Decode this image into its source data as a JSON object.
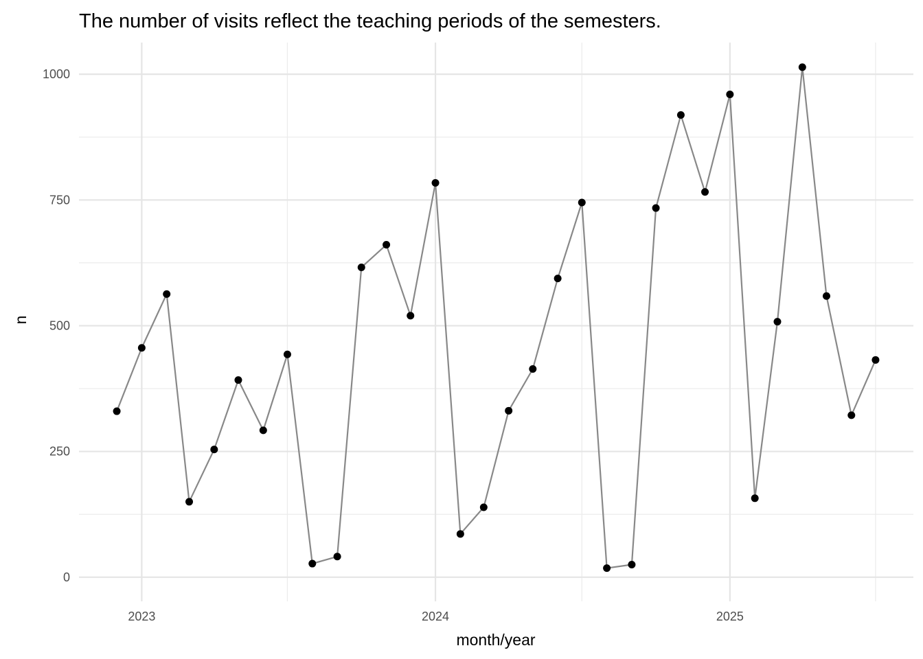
{
  "chart_data": {
    "type": "line",
    "title": "The number of visits reflect the teaching periods of the semesters.",
    "xlabel": "month/year",
    "ylabel": "n",
    "x_tick_labels": [
      "2023",
      "2024",
      "2025"
    ],
    "y_tick_labels": [
      "0",
      "250",
      "500",
      "750",
      "1000"
    ],
    "y_ticks": [
      0,
      250,
      500,
      750,
      1000
    ],
    "x_ticks": [
      "2023-01",
      "2024-01",
      "2025-01"
    ],
    "x_minor_ticks": [
      "2023-07",
      "2024-07",
      "2025-07"
    ],
    "y_minor_ticks": [
      125,
      375,
      625,
      875
    ],
    "xlim": [
      "2022-10-15",
      "2025-08-17"
    ],
    "ylim": [
      -48,
      1063
    ],
    "grid": true,
    "line_color": "#888888",
    "point_color": "#000000",
    "x": [
      "2022-12",
      "2023-01",
      "2023-02",
      "2023-03",
      "2023-04",
      "2023-05",
      "2023-06",
      "2023-07",
      "2023-08",
      "2023-09",
      "2023-10",
      "2023-11",
      "2023-12",
      "2024-01",
      "2024-02",
      "2024-03",
      "2024-04",
      "2024-05",
      "2024-06",
      "2024-07",
      "2024-08",
      "2024-09",
      "2024-10",
      "2024-11",
      "2024-12",
      "2025-01",
      "2025-02",
      "2025-03",
      "2025-04",
      "2025-05",
      "2025-06",
      "2025-07"
    ],
    "values": [
      330,
      456,
      563,
      150,
      254,
      392,
      292,
      443,
      27,
      41,
      616,
      661,
      520,
      784,
      86,
      139,
      331,
      414,
      594,
      745,
      18,
      25,
      734,
      919,
      766,
      960,
      157,
      508,
      1014,
      559,
      322,
      432
    ]
  }
}
